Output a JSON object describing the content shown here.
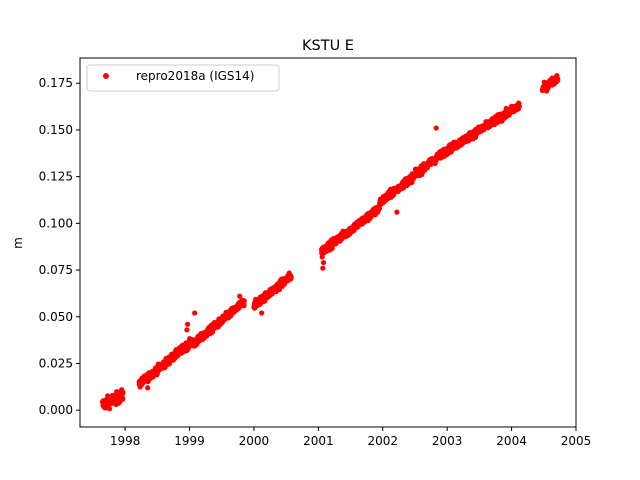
{
  "chart_data": {
    "type": "scatter",
    "title": "KSTU E",
    "xlabel": "",
    "ylabel": "m",
    "xlim": [
      1997.3,
      2005.0
    ],
    "ylim": [
      -0.009,
      0.1885
    ],
    "xticks": [
      1998,
      1999,
      2000,
      2001,
      2002,
      2003,
      2004,
      2005
    ],
    "xtick_labels": [
      "1998",
      "1999",
      "2000",
      "2001",
      "2002",
      "2003",
      "2004",
      "2005"
    ],
    "yticks": [
      0.0,
      0.025,
      0.05,
      0.075,
      0.1,
      0.125,
      0.15,
      0.175
    ],
    "ytick_labels": [
      "0.000",
      "0.025",
      "0.050",
      "0.075",
      "0.100",
      "0.125",
      "0.150",
      "0.175"
    ],
    "grid": false,
    "legend": {
      "placement": "top-left"
    },
    "series": [
      {
        "name": "repro2018a (IGS14)",
        "color": "#ff0000",
        "marker": "circle",
        "segments": [
          {
            "x_start": 1997.65,
            "x_end": 1997.97,
            "y_start": 0.003,
            "y_end": 0.008,
            "noise": 0.003
          },
          {
            "x_start": 1998.22,
            "x_end": 1999.05,
            "y_start": 0.014,
            "y_end": 0.037,
            "noise": 0.002
          },
          {
            "x_start": 1999.05,
            "x_end": 1999.85,
            "y_start": 0.035,
            "y_end": 0.058,
            "noise": 0.002
          },
          {
            "x_start": 2000.0,
            "x_end": 2000.58,
            "y_start": 0.056,
            "y_end": 0.072,
            "noise": 0.002
          },
          {
            "x_start": 2001.05,
            "x_end": 2001.95,
            "y_start": 0.085,
            "y_end": 0.108,
            "noise": 0.002
          },
          {
            "x_start": 2001.95,
            "x_end": 2002.95,
            "y_start": 0.111,
            "y_end": 0.138,
            "noise": 0.002
          },
          {
            "x_start": 2002.95,
            "x_end": 2004.12,
            "y_start": 0.138,
            "y_end": 0.163,
            "noise": 0.002
          },
          {
            "x_start": 2004.48,
            "x_end": 2004.72,
            "y_start": 0.172,
            "y_end": 0.178,
            "noise": 0.002
          }
        ],
        "outliers": [
          {
            "x": 2001.07,
            "y": 0.076
          },
          {
            "x": 2001.08,
            "y": 0.079
          },
          {
            "x": 2001.06,
            "y": 0.082
          },
          {
            "x": 2002.22,
            "y": 0.106
          },
          {
            "x": 2002.83,
            "y": 0.151
          },
          {
            "x": 1999.08,
            "y": 0.052
          },
          {
            "x": 1998.97,
            "y": 0.046
          },
          {
            "x": 1998.96,
            "y": 0.043
          },
          {
            "x": 1999.78,
            "y": 0.061
          },
          {
            "x": 2000.12,
            "y": 0.052
          },
          {
            "x": 1998.35,
            "y": 0.012
          }
        ]
      }
    ]
  }
}
